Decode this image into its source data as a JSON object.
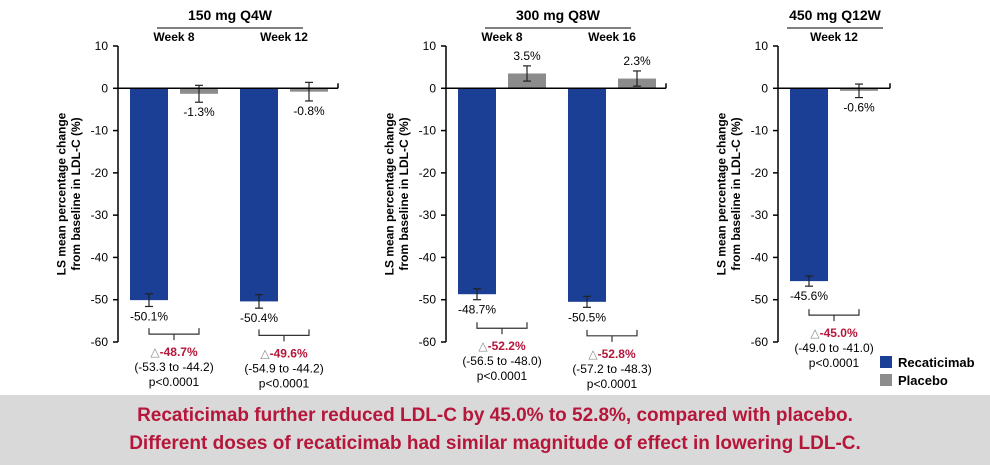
{
  "chart_data": {
    "type": "bar",
    "ylabel": "LS mean percentage change from baseline in LDL-C (%)",
    "ylim": [
      -60,
      10
    ],
    "yticks": [
      10,
      0,
      -10,
      -20,
      -30,
      -40,
      -50,
      -60
    ],
    "legend": {
      "placement": "bottom-right",
      "entries": [
        "Recaticimab",
        "Placebo"
      ]
    },
    "colors": {
      "Recaticimab": "#1a3f94",
      "Placebo": "#8c8c8c",
      "delta": "#b5163a"
    },
    "panels": [
      {
        "title": "150 mg Q4W",
        "groups": [
          {
            "week": "Week 8",
            "recaticimab": -50.1,
            "recaticimab_label": "-50.1%",
            "recaticimab_err": 1.5,
            "placebo": -1.3,
            "placebo_label": "-1.3%",
            "placebo_err": 2.0,
            "delta": "-48.7%",
            "ci": "(-53.3 to -44.2)",
            "p": "p<0.0001"
          },
          {
            "week": "Week 12",
            "recaticimab": -50.4,
            "recaticimab_label": "-50.4%",
            "recaticimab_err": 1.6,
            "placebo": -0.8,
            "placebo_label": "-0.8%",
            "placebo_err": 2.2,
            "delta": "-49.6%",
            "ci": "(-54.9 to -44.2)",
            "p": "p<0.0001"
          }
        ]
      },
      {
        "title": "300 mg Q8W",
        "groups": [
          {
            "week": "Week 8",
            "recaticimab": -48.7,
            "recaticimab_label": "-48.7%",
            "recaticimab_err": 1.3,
            "placebo": 3.5,
            "placebo_label": "3.5%",
            "placebo_err": 1.8,
            "delta": "-52.2%",
            "ci": "(-56.5 to -48.0)",
            "p": "p<0.0001"
          },
          {
            "week": "Week 16",
            "recaticimab": -50.5,
            "recaticimab_label": "-50.5%",
            "recaticimab_err": 1.3,
            "placebo": 2.3,
            "placebo_label": "2.3%",
            "placebo_err": 1.8,
            "delta": "-52.8%",
            "ci": "(-57.2 to -48.3)",
            "p": "p<0.0001"
          }
        ]
      },
      {
        "title": "450 mg Q12W",
        "groups": [
          {
            "week": "Week 12",
            "recaticimab": -45.6,
            "recaticimab_label": "-45.6%",
            "recaticimab_err": 1.2,
            "placebo": -0.6,
            "placebo_label": "-0.6%",
            "placebo_err": 1.6,
            "delta": "-45.0%",
            "ci": "(-49.0 to -41.0)",
            "p": "p<0.0001"
          }
        ]
      }
    ]
  },
  "delta_symbol": "△",
  "footer": {
    "line1": "Recaticimab further reduced LDL-C by 45.0% to 52.8%, compared with placebo.",
    "line2": "Different doses of recaticimab had similar magnitude of effect in lowering LDL-C."
  }
}
